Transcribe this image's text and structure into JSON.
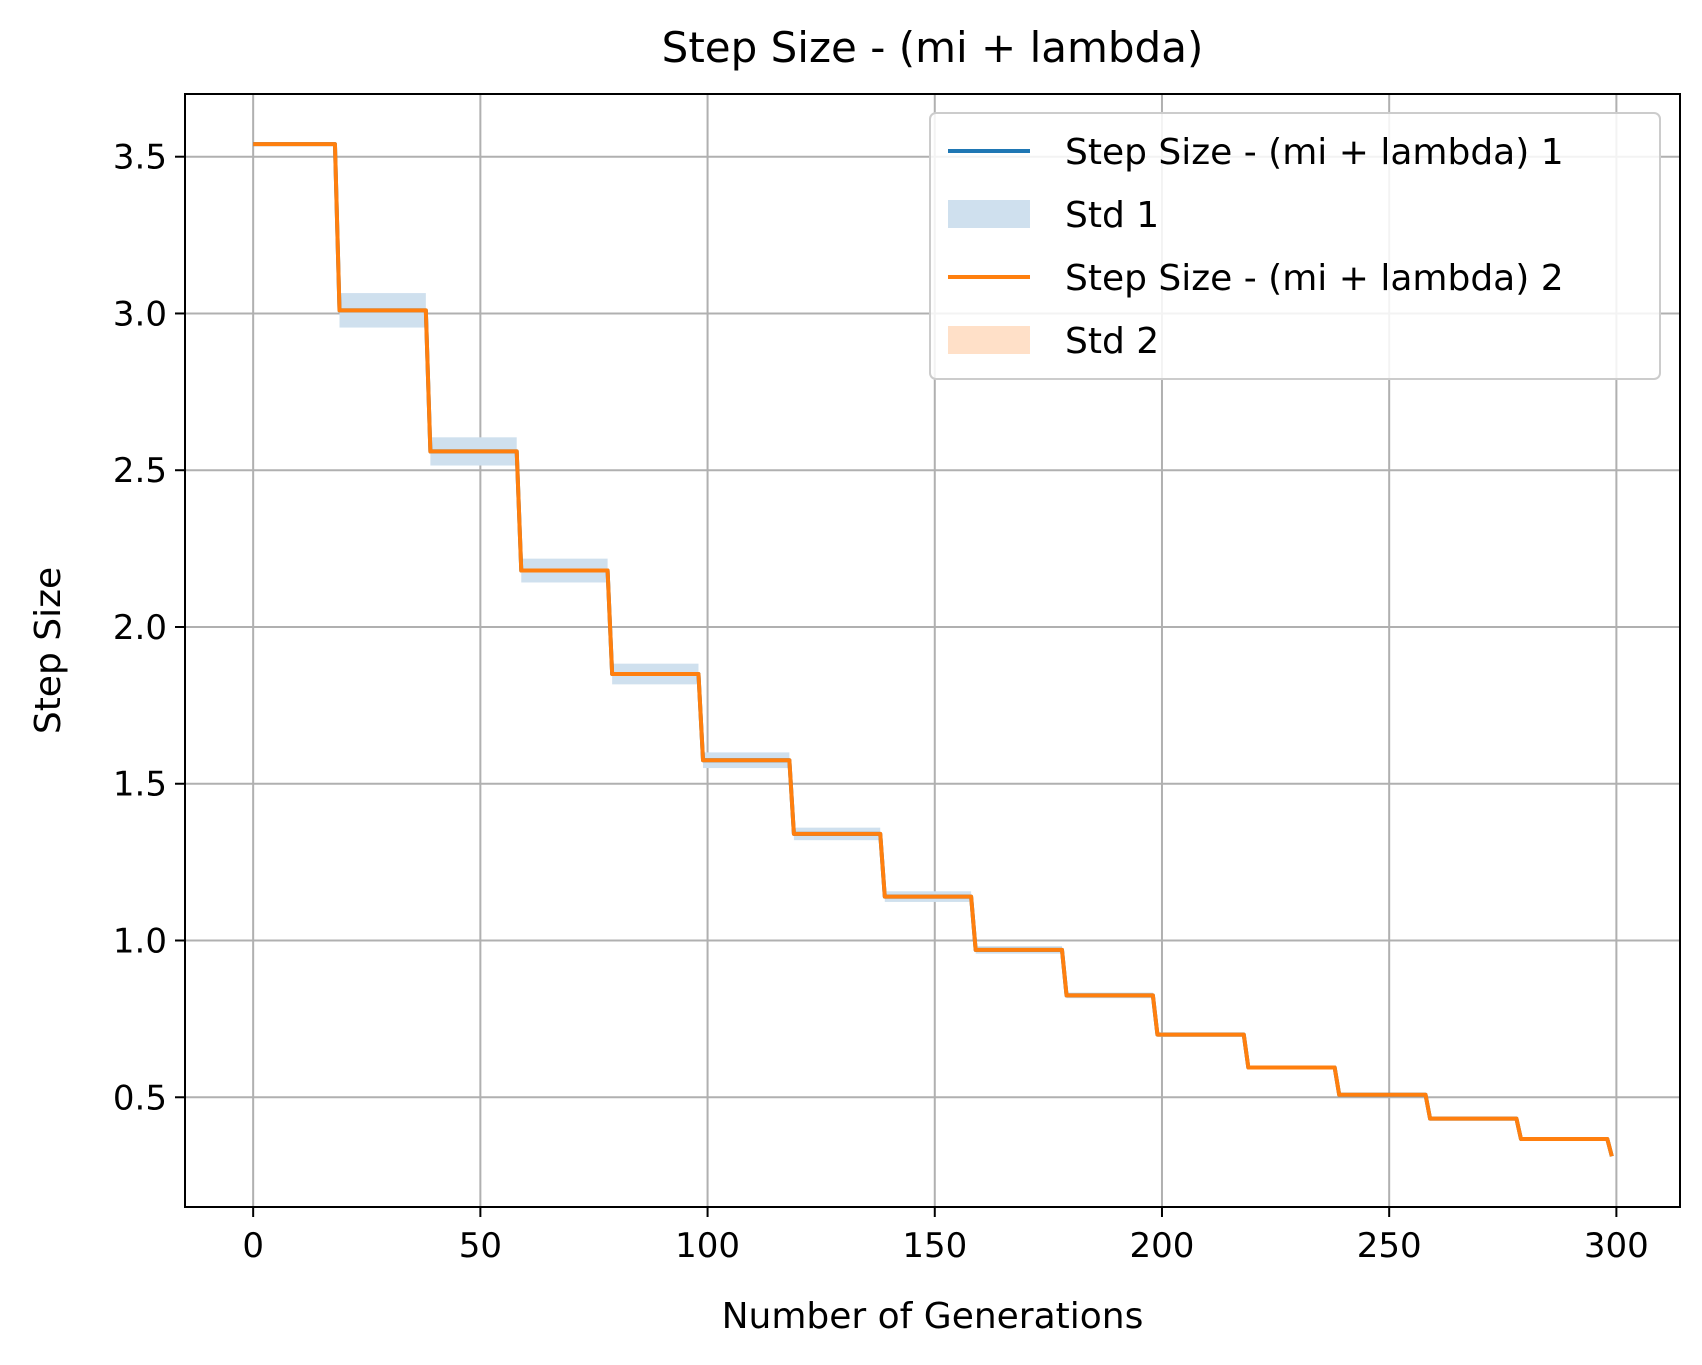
{
  "chart_data": {
    "type": "line",
    "title": "Step Size - (mi + lambda)",
    "xlabel": "Number of Generations",
    "ylabel": "Step Size",
    "xlim": [
      -15,
      314
    ],
    "ylim": [
      0.15,
      3.7
    ],
    "xticks": [
      0,
      50,
      100,
      150,
      200,
      250,
      300
    ],
    "yticks": [
      0.5,
      1.0,
      1.5,
      2.0,
      2.5,
      3.0,
      3.5
    ],
    "xtick_labels": [
      "0",
      "50",
      "100",
      "150",
      "200",
      "250",
      "300"
    ],
    "ytick_labels": [
      "0.5",
      "1.0",
      "1.5",
      "2.0",
      "2.5",
      "3.0",
      "3.5"
    ],
    "grid": true,
    "legend_position": "top-right",
    "steps": {
      "x_start": [
        0,
        19,
        39,
        59,
        79,
        99,
        119,
        139,
        159,
        179,
        199,
        219,
        239,
        259,
        279,
        299
      ],
      "x_end": [
        18,
        38,
        58,
        78,
        98,
        118,
        138,
        158,
        178,
        198,
        218,
        238,
        258,
        278,
        298,
        299
      ],
      "values": [
        3.54,
        3.01,
        2.56,
        2.18,
        1.85,
        1.575,
        1.34,
        1.14,
        0.97,
        0.825,
        0.7,
        0.595,
        0.508,
        0.432,
        0.367,
        0.312
      ]
    },
    "series": [
      {
        "name": "Step Size - (mi + lambda) 1",
        "kind": "line",
        "color": "#1f77b4",
        "values": [
          3.54,
          3.01,
          2.56,
          2.18,
          1.85,
          1.575,
          1.34,
          1.14,
          0.97,
          0.825,
          0.7,
          0.595,
          0.508,
          0.432,
          0.367,
          0.312
        ]
      },
      {
        "name": "Std 1",
        "kind": "band",
        "color": "#1f77b4",
        "std": [
          0.0,
          0.055,
          0.045,
          0.038,
          0.033,
          0.025,
          0.02,
          0.017,
          0.012,
          0.009,
          0.007,
          0.005,
          0.004,
          0.003,
          0.002,
          0.0
        ]
      },
      {
        "name": "Step Size - (mi + lambda) 2",
        "kind": "line",
        "color": "#ff7f0e",
        "values": [
          3.54,
          3.01,
          2.56,
          2.18,
          1.85,
          1.575,
          1.34,
          1.14,
          0.97,
          0.825,
          0.7,
          0.595,
          0.508,
          0.432,
          0.367,
          0.312
        ]
      },
      {
        "name": "Std 2",
        "kind": "band",
        "color": "#ff7f0e",
        "std": [
          0.0,
          0.0,
          0.0,
          0.0,
          0.0,
          0.0,
          0.0,
          0.0,
          0.0,
          0.0,
          0.0,
          0.0,
          0.0,
          0.0,
          0.0,
          0.0
        ]
      }
    ]
  },
  "colors": {
    "grid": "#b0b0b0",
    "band_1": "#cfe0ee",
    "band_2": "#ffe0c8",
    "legend_border": "#cccccc"
  }
}
